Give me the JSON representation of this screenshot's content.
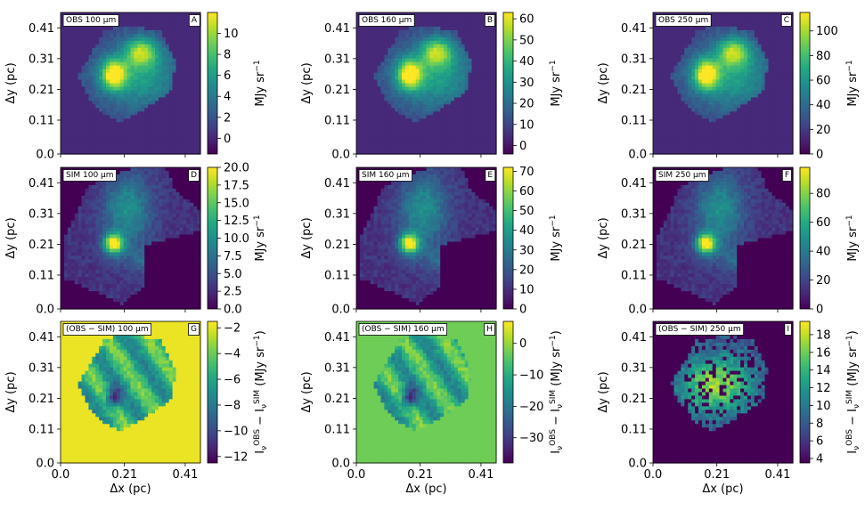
{
  "chart_data": {
    "type": "heatmap",
    "colormap": "viridis",
    "rows": 3,
    "cols": 3,
    "xlabel": "Δx (pc)",
    "ylabel": "Δy (pc)",
    "xticks": [
      "0.0",
      "0.21",
      "0.41"
    ],
    "yticks": [
      "0.0",
      "0.11",
      "0.21",
      "0.31",
      "0.41"
    ],
    "xlim": [
      0.0,
      0.46
    ],
    "ylim": [
      0.0,
      0.46
    ],
    "panels": [
      {
        "id": "A",
        "label": "OBS 100 µm",
        "kind": "obs",
        "colorbar": {
          "min": -1.5,
          "max": 12,
          "ticks": [
            "0",
            "2",
            "4",
            "6",
            "8",
            "10"
          ],
          "tick_values": [
            0,
            2,
            4,
            6,
            8,
            10
          ],
          "label": "MJy sr⁻¹"
        }
      },
      {
        "id": "B",
        "label": "OBS 160 µm",
        "kind": "obs",
        "colorbar": {
          "min": -4,
          "max": 63,
          "ticks": [
            "0",
            "10",
            "20",
            "30",
            "40",
            "50",
            "60"
          ],
          "tick_values": [
            0,
            10,
            20,
            30,
            40,
            50,
            60
          ],
          "label": "MJy sr⁻¹"
        }
      },
      {
        "id": "C",
        "label": "OBS 250 µm",
        "kind": "obs",
        "colorbar": {
          "min": 0,
          "max": 115,
          "ticks": [
            "0",
            "20",
            "40",
            "60",
            "80",
            "100"
          ],
          "tick_values": [
            0,
            20,
            40,
            60,
            80,
            100
          ],
          "label": "MJy sr⁻¹"
        }
      },
      {
        "id": "D",
        "label": "SIM 100 µm",
        "kind": "sim",
        "colorbar": {
          "min": 0,
          "max": 20,
          "ticks": [
            "0.0",
            "2.5",
            "5.0",
            "7.5",
            "10.0",
            "12.5",
            "15.0",
            "17.5",
            "20.0"
          ],
          "tick_values": [
            0,
            2.5,
            5,
            7.5,
            10,
            12.5,
            15,
            17.5,
            20
          ],
          "label": "MJy sr⁻¹"
        }
      },
      {
        "id": "E",
        "label": "SIM 160 µm",
        "kind": "sim",
        "colorbar": {
          "min": 0,
          "max": 72,
          "ticks": [
            "0",
            "10",
            "20",
            "30",
            "40",
            "50",
            "60",
            "70"
          ],
          "tick_values": [
            0,
            10,
            20,
            30,
            40,
            50,
            60,
            70
          ],
          "label": "MJy sr⁻¹"
        }
      },
      {
        "id": "F",
        "label": "SIM 250 µm",
        "kind": "sim",
        "colorbar": {
          "min": 0,
          "max": 98,
          "ticks": [
            "0",
            "20",
            "40",
            "60",
            "80"
          ],
          "tick_values": [
            0,
            20,
            40,
            60,
            80
          ],
          "label": "MJy sr⁻¹"
        }
      },
      {
        "id": "G",
        "label": "(OBS − SIM) 100 µm",
        "kind": "diff",
        "bgval": 0.97,
        "colorbar": {
          "min": -12.5,
          "max": -1.5,
          "ticks": [
            "−12",
            "−10",
            "−8",
            "−6",
            "−4",
            "−2"
          ],
          "tick_values": [
            -12,
            -10,
            -8,
            -6,
            -4,
            -2
          ],
          "label": "I_ν^OBS − I_ν^SIM (MJy sr⁻¹)"
        }
      },
      {
        "id": "H",
        "label": "(OBS − SIM) 160 µm",
        "kind": "diff",
        "bgval": 0.78,
        "colorbar": {
          "min": -38,
          "max": 7,
          "ticks": [
            "−30",
            "−20",
            "−10",
            "0"
          ],
          "tick_values": [
            -30,
            -20,
            -10,
            0
          ],
          "label": "I_ν^OBS − I_ν^SIM (MJy sr⁻¹)"
        }
      },
      {
        "id": "I",
        "label": "(OBS − SIM) 250 µm",
        "kind": "diff250",
        "colorbar": {
          "min": 3.5,
          "max": 19.5,
          "ticks": [
            "4",
            "6",
            "8",
            "10",
            "12",
            "14",
            "16",
            "18"
          ],
          "tick_values": [
            4,
            6,
            8,
            10,
            12,
            14,
            16,
            18
          ],
          "label": "I_ν^OBS − I_ν^SIM (MJy sr⁻¹)"
        }
      }
    ]
  }
}
